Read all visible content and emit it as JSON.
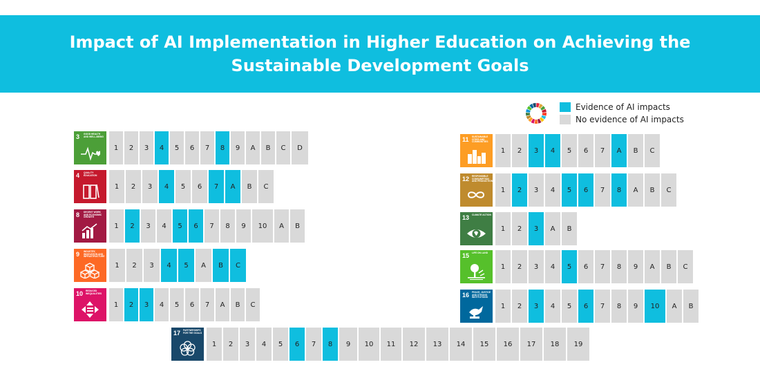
{
  "title": "Impact of AI Implementation in Higher Education on Achieving the Sustainable Development Goals",
  "legend": {
    "evidence": {
      "label": "Evidence of AI impacts",
      "color": "#0fbedf"
    },
    "no_evidence": {
      "label": "No evidence of AI impacts",
      "color": "#d9d9d9"
    }
  },
  "goals": [
    {
      "number": "3",
      "label": "Good Health and Well-Being",
      "color": "#4c9f38",
      "icon": "heartbeat-icon",
      "targets": [
        "1",
        "2",
        "3",
        "4",
        "5",
        "6",
        "7",
        "8",
        "9",
        "A",
        "B",
        "C",
        "D"
      ],
      "evidence": [
        "4",
        "8"
      ]
    },
    {
      "number": "4",
      "label": "Quality Education",
      "color": "#c5192d",
      "icon": "book-icon",
      "targets": [
        "1",
        "2",
        "3",
        "4",
        "5",
        "6",
        "7",
        "A",
        "B",
        "C"
      ],
      "evidence": [
        "4",
        "7",
        "A"
      ]
    },
    {
      "number": "8",
      "label": "Decent Work and Economic Growth",
      "color": "#a21942",
      "icon": "growth-chart-icon",
      "targets": [
        "1",
        "2",
        "3",
        "4",
        "5",
        "6",
        "7",
        "8",
        "9",
        "10",
        "A",
        "B"
      ],
      "evidence": [
        "2",
        "5",
        "6"
      ]
    },
    {
      "number": "9",
      "label": "Industry, Innovation and Infrastructure",
      "color": "#fd6925",
      "icon": "cubes-icon",
      "targets": [
        "1",
        "2",
        "3",
        "4",
        "5",
        "A",
        "B",
        "C"
      ],
      "evidence": [
        "4",
        "5",
        "B",
        "C"
      ]
    },
    {
      "number": "10",
      "label": "Reduced Inequalities",
      "color": "#dd1367",
      "icon": "equality-arrows-icon",
      "targets": [
        "1",
        "2",
        "3",
        "4",
        "5",
        "6",
        "7",
        "A",
        "B",
        "C"
      ],
      "evidence": [
        "2",
        "3"
      ]
    },
    {
      "number": "11",
      "label": "Sustainable Cities and Communities",
      "color": "#fd9d24",
      "icon": "city-icon",
      "targets": [
        "1",
        "2",
        "3",
        "4",
        "5",
        "6",
        "7",
        "A",
        "B",
        "C"
      ],
      "evidence": [
        "3",
        "4",
        "A"
      ]
    },
    {
      "number": "12",
      "label": "Responsible Consumption and Production",
      "color": "#bf8b2e",
      "icon": "infinity-icon",
      "targets": [
        "1",
        "2",
        "3",
        "4",
        "5",
        "6",
        "7",
        "8",
        "A",
        "B",
        "C"
      ],
      "evidence": [
        "2",
        "5",
        "6",
        "8"
      ]
    },
    {
      "number": "13",
      "label": "Climate Action",
      "color": "#3f7e44",
      "icon": "eye-globe-icon",
      "targets": [
        "1",
        "2",
        "3",
        "A",
        "B"
      ],
      "evidence": [
        "3"
      ]
    },
    {
      "number": "15",
      "label": "Life on Land",
      "color": "#56c02b",
      "icon": "tree-icon",
      "targets": [
        "1",
        "2",
        "3",
        "4",
        "5",
        "6",
        "7",
        "8",
        "9",
        "A",
        "B",
        "C"
      ],
      "evidence": [
        "5"
      ]
    },
    {
      "number": "16",
      "label": "Peace, Justice and Strong Institutions",
      "color": "#00689d",
      "icon": "dove-gavel-icon",
      "targets": [
        "1",
        "2",
        "3",
        "4",
        "5",
        "6",
        "7",
        "8",
        "9",
        "10",
        "A",
        "B"
      ],
      "evidence": [
        "3",
        "6",
        "10"
      ]
    },
    {
      "number": "17",
      "label": "Partnerships for the Goals",
      "color": "#19486a",
      "icon": "rings-icon",
      "targets": [
        "1",
        "2",
        "3",
        "4",
        "5",
        "6",
        "7",
        "8",
        "9",
        "10",
        "11",
        "12",
        "13",
        "14",
        "15",
        "16",
        "17",
        "18",
        "19"
      ],
      "evidence": [
        "6",
        "8"
      ]
    }
  ]
}
